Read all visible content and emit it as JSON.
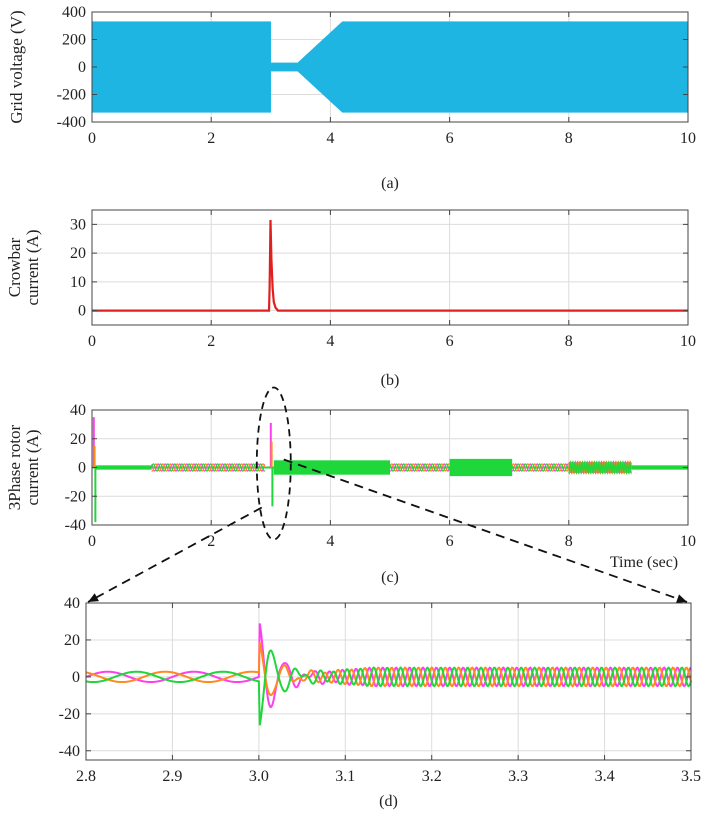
{
  "colors": {
    "voltage": "#1fb5e3",
    "crowbar": "#e0201e",
    "phase_a": "#ff3ef0",
    "phase_b": "#ff8a1e",
    "phase_c": "#1fd63b",
    "grid": "#dcdcdc",
    "annotation": "#111111"
  },
  "chart_data": [
    {
      "id": "a",
      "type": "area",
      "caption": "(a)",
      "ylabel": "Grid voltage (V)",
      "xlabel": "",
      "xlim": [
        0,
        10
      ],
      "ylim": [
        -400,
        400
      ],
      "xticks": [
        0,
        2,
        4,
        6,
        8,
        10
      ],
      "yticks": [
        -400,
        -200,
        0,
        200,
        400
      ],
      "grid": true,
      "series": [
        {
          "color_key": "voltage",
          "envelope": [
            [
              0,
              330
            ],
            [
              3.0,
              330
            ],
            [
              3.0,
              30
            ],
            [
              3.45,
              30
            ],
            [
              4.2,
              330
            ],
            [
              10,
              330
            ]
          ]
        }
      ]
    },
    {
      "id": "b",
      "type": "line",
      "caption": "(b)",
      "ylabel": [
        "Crowbar",
        "current (A)"
      ],
      "xlabel": "",
      "xlim": [
        0,
        10
      ],
      "ylim": [
        -5,
        35
      ],
      "xticks": [
        0,
        2,
        4,
        6,
        8,
        10
      ],
      "yticks": [
        0,
        10,
        20,
        30
      ],
      "grid": true,
      "series": [
        {
          "color_key": "crowbar",
          "points": [
            [
              0,
              0
            ],
            [
              2.97,
              0
            ],
            [
              2.98,
              8
            ],
            [
              2.995,
              31.5
            ],
            [
              3.01,
              18
            ],
            [
              3.03,
              8
            ],
            [
              3.05,
              3
            ],
            [
              3.08,
              1
            ],
            [
              3.12,
              0
            ],
            [
              10,
              0
            ]
          ]
        }
      ]
    },
    {
      "id": "c",
      "type": "line",
      "caption": "(c)",
      "ylabel": [
        "3Phase rotor",
        "current (A)"
      ],
      "xlabel": "Time (sec)",
      "xlim": [
        0,
        10
      ],
      "ylim": [
        -40,
        40
      ],
      "xticks": [
        0,
        2,
        4,
        6,
        8,
        10
      ],
      "yticks": [
        -40,
        -20,
        0,
        20,
        40
      ],
      "grid": true,
      "segments": [
        {
          "t0": 0.05,
          "t1": 1.0,
          "amp": 1.5,
          "mode": "band"
        },
        {
          "t0": 1.0,
          "t1": 2.9,
          "amp": 2.5,
          "mode": "sine",
          "period": 0.12
        },
        {
          "t0": 3.05,
          "t1": 5.0,
          "amp": 5,
          "mode": "band"
        },
        {
          "t0": 5.0,
          "t1": 6.0,
          "amp": 2.5,
          "mode": "sine",
          "period": 0.12
        },
        {
          "t0": 6.0,
          "t1": 7.05,
          "amp": 6,
          "mode": "band"
        },
        {
          "t0": 7.05,
          "t1": 8.0,
          "amp": 2.5,
          "mode": "sine",
          "period": 0.12
        },
        {
          "t0": 8.0,
          "t1": 9.05,
          "amp": 3.5,
          "mode": "sine",
          "period": 0.04
        },
        {
          "t0": 9.05,
          "t1": 10.0,
          "amp": 1.5,
          "mode": "band"
        }
      ],
      "spikes": [
        {
          "t": 0.03,
          "values": [
            35,
            15,
            -38
          ]
        },
        {
          "t": 3.0,
          "values": [
            31,
            18,
            -27
          ]
        }
      ]
    },
    {
      "id": "d",
      "type": "line",
      "caption": "(d)",
      "ylabel": "",
      "xlabel": "",
      "xlim": [
        2.8,
        3.5
      ],
      "ylim": [
        -45,
        40
      ],
      "xticks": [
        2.8,
        2.9,
        3.0,
        3.1,
        3.2,
        3.3,
        3.4,
        3.5
      ],
      "yticks": [
        -40,
        -20,
        0,
        20,
        40
      ],
      "grid": true,
      "pre_fault": {
        "t_end": 3.0,
        "amp": 2.8,
        "period": 0.1
      },
      "transient": {
        "t_start": 3.0,
        "decay": 0.022,
        "period": 0.03,
        "peaks": [
          31,
          20,
          -28
        ]
      },
      "post_fault": {
        "t_start": 3.05,
        "amp": 5,
        "period": 0.0155
      }
    }
  ]
}
